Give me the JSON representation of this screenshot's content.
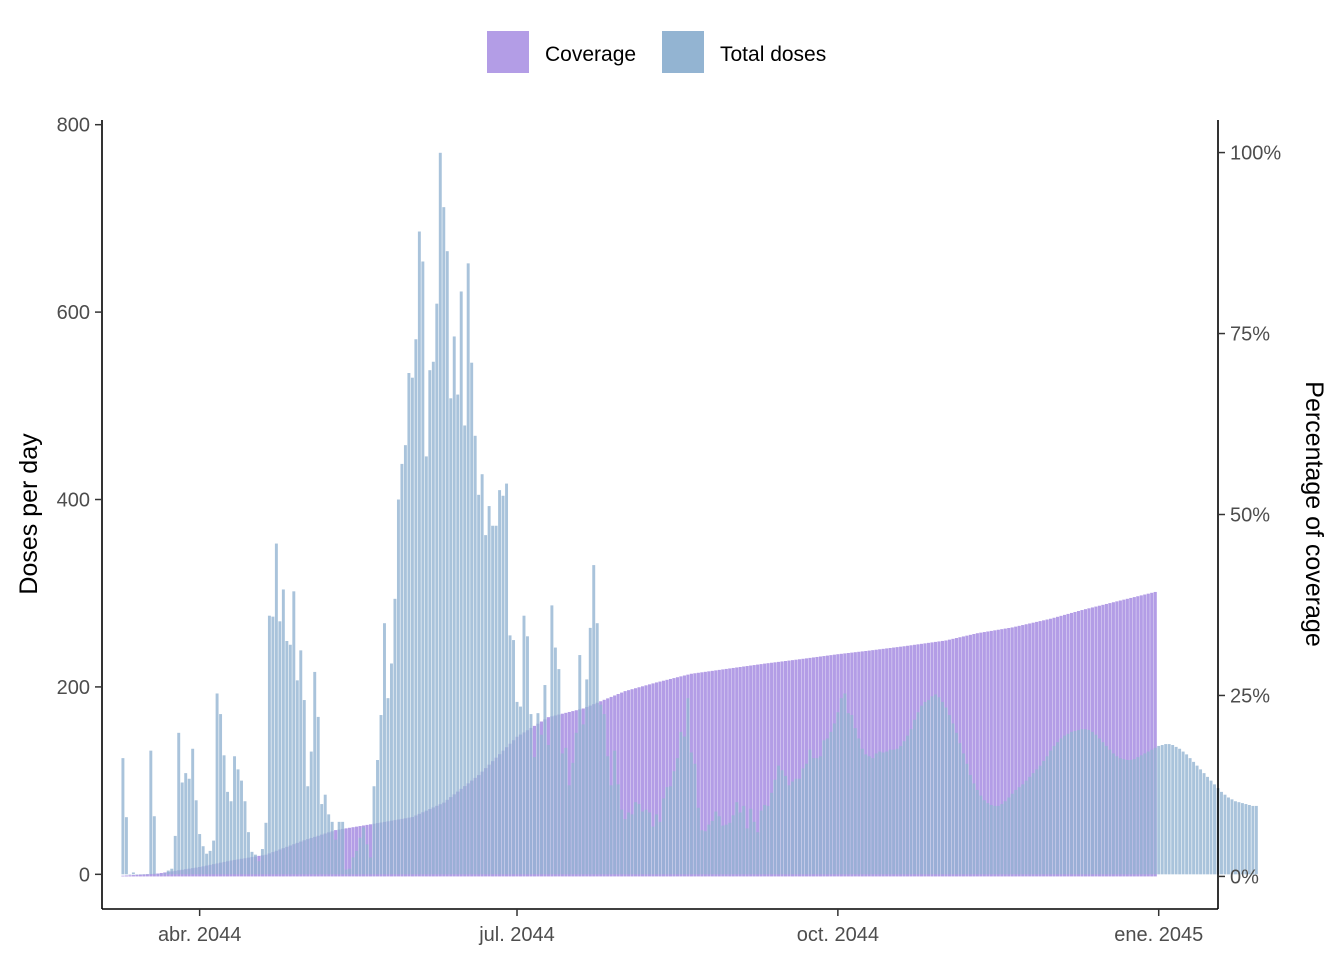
{
  "chart_data": {
    "type": "bar",
    "y_left_label": "Doses per day",
    "y_right_label": "Percentage of coverage",
    "ylim_left": [
      -37,
      805
    ],
    "ylim_right_percent": [
      -4.5,
      104.5
    ],
    "y_left_ticks": [
      0,
      200,
      400,
      600,
      800
    ],
    "y_left_tick_labels": [
      "0",
      "200",
      "400",
      "600",
      "800"
    ],
    "y_right_ticks": [
      0,
      25,
      50,
      75,
      100
    ],
    "y_right_tick_labels": [
      "0%",
      "25%",
      "50%",
      "75%",
      "100%"
    ],
    "x_ticks": [
      "2044-04-01",
      "2044-07-01",
      "2044-10-01",
      "2045-01-01"
    ],
    "x_tick_labels": [
      "abr. 2044",
      "jul. 2044",
      "oct. 2044",
      "ene. 2045"
    ],
    "x_range": [
      "2044-03-04",
      "2045-01-18"
    ],
    "legend_position": "top",
    "grid": false,
    "series": [
      {
        "name": "Coverage",
        "color": "#b39de6",
        "axis": "right",
        "unit": "percent",
        "start_date": "2044-03-10",
        "end_date": "2044-12-31",
        "points": [
          [
            "2044-03-10",
            0.1
          ],
          [
            "2044-03-20",
            0.4
          ],
          [
            "2044-04-01",
            1.3
          ],
          [
            "2044-04-10",
            2.2
          ],
          [
            "2044-04-20",
            3.0
          ],
          [
            "2044-05-01",
            5.0
          ],
          [
            "2044-05-10",
            6.4
          ],
          [
            "2044-05-20",
            7.2
          ],
          [
            "2044-06-01",
            8.2
          ],
          [
            "2044-06-10",
            10.2
          ],
          [
            "2044-06-20",
            14.0
          ],
          [
            "2044-07-01",
            19.3
          ],
          [
            "2044-07-10",
            22.0
          ],
          [
            "2044-07-20",
            23.2
          ],
          [
            "2044-08-01",
            25.6
          ],
          [
            "2044-08-10",
            26.8
          ],
          [
            "2044-08-20",
            28.0
          ],
          [
            "2044-09-01",
            28.8
          ],
          [
            "2044-09-10",
            29.4
          ],
          [
            "2044-09-20",
            30.0
          ],
          [
            "2044-10-01",
            30.7
          ],
          [
            "2044-10-10",
            31.2
          ],
          [
            "2044-10-20",
            31.8
          ],
          [
            "2044-11-01",
            32.6
          ],
          [
            "2044-11-10",
            33.6
          ],
          [
            "2044-11-20",
            34.4
          ],
          [
            "2044-12-01",
            35.6
          ],
          [
            "2044-12-10",
            36.8
          ],
          [
            "2044-12-20",
            38.0
          ],
          [
            "2044-12-31",
            39.3
          ]
        ]
      },
      {
        "name": "Total doses",
        "color": "#93b4d2",
        "axis": "left",
        "unit": "doses",
        "start_date": "2044-03-10",
        "values": [
          124,
          61,
          0,
          2,
          0,
          0,
          0,
          0,
          132,
          62,
          0,
          0,
          1,
          4,
          6,
          41,
          151,
          98,
          108,
          102,
          134,
          79,
          43,
          30,
          22,
          25,
          36,
          193,
          171,
          127,
          88,
          78,
          126,
          112,
          100,
          78,
          45,
          24,
          21,
          14,
          27,
          55,
          276,
          275,
          353,
          270,
          304,
          249,
          245,
          302,
          207,
          239,
          186,
          94,
          131,
          216,
          168,
          75,
          85,
          64,
          56,
          37,
          56,
          56,
          5,
          6,
          18,
          25,
          39,
          50,
          32,
          18,
          94,
          122,
          170,
          268,
          188,
          225,
          294,
          400,
          438,
          458,
          535,
          530,
          571,
          686,
          654,
          446,
          538,
          547,
          609,
          770,
          712,
          665,
          508,
          574,
          512,
          622,
          479,
          652,
          546,
          468,
          405,
          427,
          362,
          393,
          372,
          372,
          410,
          404,
          417,
          255,
          250,
          184,
          179,
          276,
          254,
          171,
          125,
          172,
          149,
          202,
          138,
          287,
          242,
          219,
          129,
          135,
          95,
          119,
          151,
          234,
          160,
          208,
          263,
          330,
          268,
          181,
          171,
          126,
          95,
          132,
          96,
          69,
          59,
          66,
          64,
          77,
          75,
          67,
          69,
          66,
          51,
          64,
          56,
          81,
          93,
          94,
          110,
          124,
          152,
          147,
          188,
          130,
          118,
          71,
          47,
          46,
          53,
          57,
          67,
          62,
          52,
          53,
          55,
          63,
          77,
          66,
          73,
          49,
          70,
          56,
          45,
          68,
          74,
          73,
          87,
          101,
          116,
          111,
          105,
          95,
          99,
          102,
          102,
          113,
          118,
          133,
          124,
          124,
          126,
          143,
          145,
          152,
          161,
          173,
          188,
          193,
          172,
          170,
          156,
          145,
          134,
          128,
          126,
          124,
          129,
          131,
          130,
          131,
          133,
          133,
          134,
          137,
          142,
          148,
          155,
          165,
          173,
          180,
          184,
          186,
          190,
          192,
          189,
          184,
          178,
          170,
          161,
          151,
          140,
          129,
          118,
          106,
          97,
          90,
          84,
          79,
          76,
          74,
          73,
          73,
          75,
          78,
          82,
          86,
          90,
          93,
          96,
          100,
          104,
          108,
          112,
          116,
          121,
          126,
          132,
          137,
          141,
          145,
          148,
          150,
          152,
          153,
          154,
          155,
          155,
          154,
          152,
          149,
          145,
          141,
          137,
          133,
          129,
          126,
          124,
          123,
          122,
          122,
          123,
          125,
          127,
          129,
          131,
          133,
          135,
          137,
          138,
          139,
          139,
          138,
          136,
          134,
          131,
          128,
          124,
          120,
          116,
          112,
          108,
          104,
          100,
          96,
          92,
          88,
          85,
          82,
          80,
          78,
          77,
          76,
          75,
          74,
          73,
          73
        ]
      }
    ]
  }
}
